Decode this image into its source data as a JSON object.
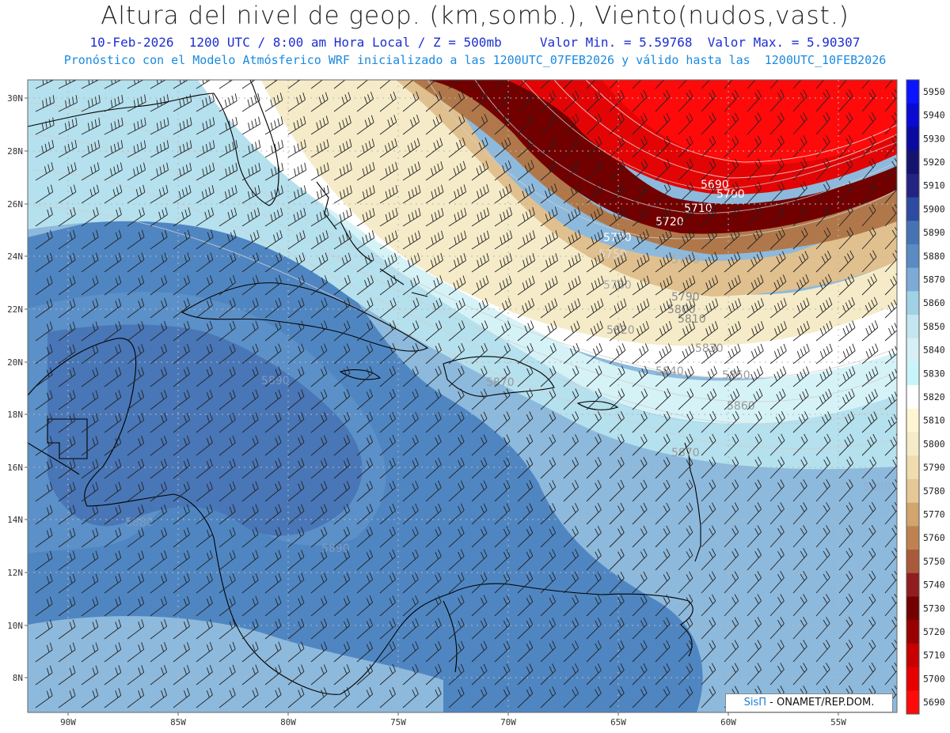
{
  "header": {
    "title": "Altura del nivel de geop. (km,somb.), Viento(nudos,vast.)",
    "line1": "10-Feb-2026  1200 UTC / 8:00 am Hora Local / Z = 500mb     Valor Min. = 5.59768  Valor Max. = 5.90307",
    "line2": "Pronóstico con el Modelo Atmósferico WRF inicializado a las 1200UTC_07FEB2026 y válido hasta las  1200UTC_10FEB2026"
  },
  "axes": {
    "lat_labels": [
      "30N",
      "28N",
      "26N",
      "24N",
      "22N",
      "20N",
      "18N",
      "16N",
      "14N",
      "12N",
      "10N",
      "8N"
    ],
    "lon_labels": [
      "90W",
      "85W",
      "80W",
      "75W",
      "70W",
      "65W",
      "60W",
      "55W"
    ]
  },
  "colorbar": {
    "levels": [
      "5950",
      "5940",
      "5930",
      "5920",
      "5910",
      "5900",
      "5890",
      "5880",
      "5870",
      "5860",
      "5850",
      "5840",
      "5830",
      "5820",
      "5810",
      "5800",
      "5790",
      "5780",
      "5770",
      "5760",
      "5750",
      "5740",
      "5730",
      "5720",
      "5710",
      "5700",
      "5690"
    ],
    "colors": [
      "#0a14ff",
      "#0a0ad2",
      "#0a0aa0",
      "#14146e",
      "#232382",
      "#2d4ba0",
      "#4673b4",
      "#5a8cc3",
      "#7daad7",
      "#a0d2e6",
      "#c3e6f0",
      "#d7f0f5",
      "#c8f5fa",
      "#ffffff",
      "#fff5d2",
      "#f5ebc8",
      "#f0dcaf",
      "#e6c896",
      "#d2a56e",
      "#be8250",
      "#aa5a3c",
      "#911e1e",
      "#730000",
      "#9b0000",
      "#c80000",
      "#e60000",
      "#ff0a0a"
    ]
  },
  "contour_labels": [
    {
      "text": "5690",
      "color": "#ffffff"
    },
    {
      "text": "5700",
      "color": "#ffffff"
    },
    {
      "text": "5710",
      "color": "#ffffff"
    },
    {
      "text": "5720",
      "color": "#ffffff"
    },
    {
      "text": "5730",
      "color": "#ffffff"
    },
    {
      "text": "5750",
      "color": "#dddddd"
    },
    {
      "text": "5760",
      "color": "#aaaaaa"
    },
    {
      "text": "5780",
      "color": "#aaaaaa"
    },
    {
      "text": "5790",
      "color": "#888888"
    },
    {
      "text": "5800",
      "color": "#888888"
    },
    {
      "text": "5810",
      "color": "#888888"
    },
    {
      "text": "5820",
      "color": "#999999"
    },
    {
      "text": "5830",
      "color": "#999999"
    },
    {
      "text": "5840",
      "color": "#999999"
    },
    {
      "text": "5850",
      "color": "#999999"
    },
    {
      "text": "5860",
      "color": "#999999"
    },
    {
      "text": "5870",
      "color": "#999999"
    },
    {
      "text": "5890",
      "color": "#7d9bc3"
    },
    {
      "text": "5870",
      "color": "#999999"
    },
    {
      "text": "5880",
      "color": "#7d9bc3"
    },
    {
      "text": "5890",
      "color": "#7d9bc3"
    },
    {
      "text": "5880",
      "color": "#8fb0d2"
    }
  ],
  "credit": {
    "brand": "SisΠ",
    "text": "- ONAMET/REP.DOM."
  }
}
